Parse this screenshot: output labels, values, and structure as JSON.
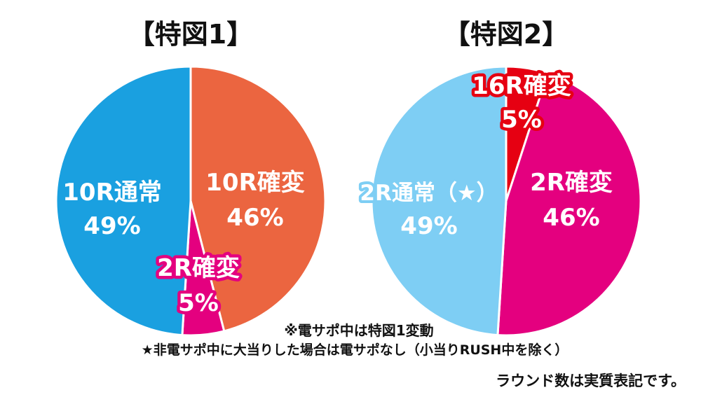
{
  "chart_data": [
    {
      "type": "pie",
      "title": "【特図1】",
      "slices": [
        {
          "label_line1": "10R確変",
          "label_line2": "46%",
          "value": 46,
          "color": "#eb6540"
        },
        {
          "label_line1": "2R確変",
          "label_line2": "5%",
          "value": 5,
          "color": "#e4007f"
        },
        {
          "label_line1": "10R通常",
          "label_line2": "49%",
          "value": 49,
          "color": "#1aa0e0"
        }
      ]
    },
    {
      "type": "pie",
      "title": "【特図2】",
      "slices": [
        {
          "label_line1": "16R確変",
          "label_line2": "5%",
          "value": 5,
          "color": "#e60012"
        },
        {
          "label_line1": "2R確変",
          "label_line2": "46%",
          "value": 46,
          "color": "#e4007f"
        },
        {
          "label_line1": "2R通常（★）",
          "label_line2": "49%",
          "value": 49,
          "color": "#7ecef4"
        }
      ]
    }
  ],
  "notes": {
    "note1": "※電サポ中は特図1変動",
    "note2": "★非電サポ中に大当りした場合は電サポなし（小当りRUSH中を除く）",
    "note3": "ラウンド数は実質表記です。"
  }
}
